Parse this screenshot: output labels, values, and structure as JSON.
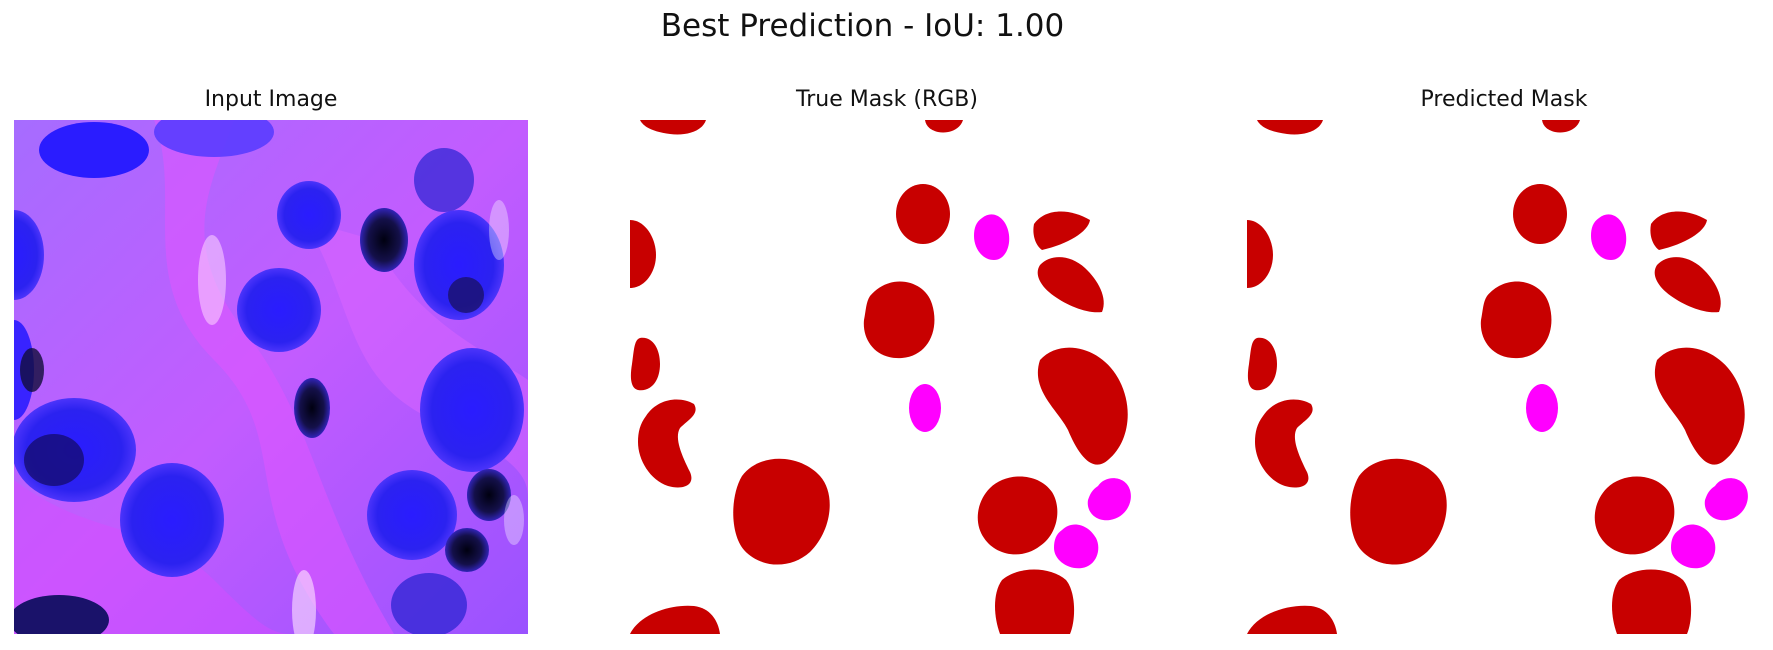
{
  "figure": {
    "title": "Best Prediction - IoU: 1.00",
    "panels": [
      {
        "title": "Input Image"
      },
      {
        "title": "True Mask (RGB)"
      },
      {
        "title": "Predicted Mask"
      }
    ]
  },
  "colors": {
    "nucleus_class": "#c80000",
    "secondary_class": "#ff00ff",
    "background": "#ffffff",
    "stain_base": "#b04cff",
    "nuclei_stain": "#2a1cff"
  }
}
